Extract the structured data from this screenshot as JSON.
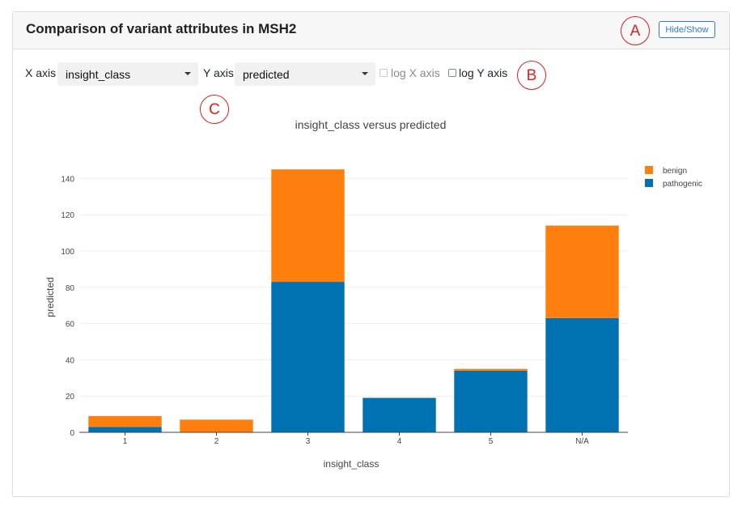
{
  "panel": {
    "title": "Comparison of variant attributes in MSH2",
    "hide_show_label": "Hide/Show"
  },
  "annotations": {
    "a": "A",
    "b": "B",
    "c": "C"
  },
  "controls": {
    "x_axis_label": "X axis",
    "x_axis_value": "insight_class",
    "y_axis_label": "Y axis",
    "y_axis_value": "predicted",
    "log_x_label": "log X axis",
    "log_x_checked": false,
    "log_x_disabled": true,
    "log_y_label": "log Y axis",
    "log_y_checked": false
  },
  "chart_data": {
    "type": "bar",
    "stacked": true,
    "title": "insight_class versus predicted",
    "xlabel": "insight_class",
    "ylabel": "predicted",
    "categories": [
      "1",
      "2",
      "3",
      "4",
      "5",
      "N/A"
    ],
    "series": [
      {
        "name": "pathogenic",
        "color": "#0072b2",
        "values": [
          3,
          0,
          83,
          19,
          34,
          63
        ]
      },
      {
        "name": "benign",
        "color": "#ff7f0e",
        "values": [
          6,
          7,
          62,
          0,
          1,
          51
        ]
      }
    ],
    "legend_order": [
      "benign",
      "pathogenic"
    ],
    "ylim": [
      0,
      150
    ],
    "yticks": [
      0,
      20,
      40,
      60,
      80,
      100,
      120,
      140
    ],
    "grid": true,
    "legend_position": "top-right"
  }
}
